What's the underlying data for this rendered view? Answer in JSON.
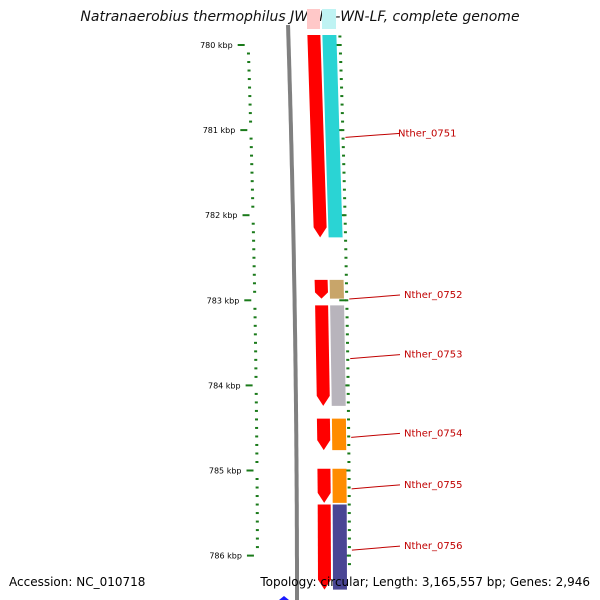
{
  "title": "Natranaerobius thermophilus JW/NM-WN-LF, complete genome",
  "footer": {
    "accession": "Accession: NC_010718",
    "summary": "Topology: circular; Length: 3,165,557 bp; Genes: 2,946"
  },
  "colors": {
    "backbone": "#808080",
    "tick": "#1a7a1a",
    "label": "#c00000",
    "strand": "#ff0000",
    "strand_light": "#ffc8c8",
    "cyan": "#2ad4d4",
    "cyan_light": "#bff3f3",
    "tan": "#c8a56a",
    "gray": "#b8b4bc",
    "orange": "#ff8c00",
    "navy": "#4a4694",
    "pointer": "#1a1aff"
  },
  "axis": {
    "unit": "kbp",
    "ticks": [
      {
        "value": 780,
        "label": "780 kbp"
      },
      {
        "value": 781,
        "label": "781 kbp"
      },
      {
        "value": 782,
        "label": "782 kbp"
      },
      {
        "value": 783,
        "label": "783 kbp"
      },
      {
        "value": 784,
        "label": "784 kbp"
      },
      {
        "value": 785,
        "label": "785 kbp"
      },
      {
        "value": 786,
        "label": "786 kbp"
      }
    ]
  },
  "genes": [
    {
      "name": "Nther_0751",
      "start": 779.8,
      "end": 782.26,
      "color": "cyan"
    },
    {
      "name": "Nther_0752",
      "start": 782.76,
      "end": 782.98,
      "color": "tan"
    },
    {
      "name": "Nther_0753",
      "start": 783.06,
      "end": 784.24,
      "color": "gray"
    },
    {
      "name": "Nther_0754",
      "start": 784.39,
      "end": 784.76,
      "color": "orange"
    },
    {
      "name": "Nther_0755",
      "start": 784.98,
      "end": 785.38,
      "color": "orange"
    },
    {
      "name": "Nther_0756",
      "start": 785.4,
      "end": 786.4,
      "color": "navy"
    }
  ]
}
